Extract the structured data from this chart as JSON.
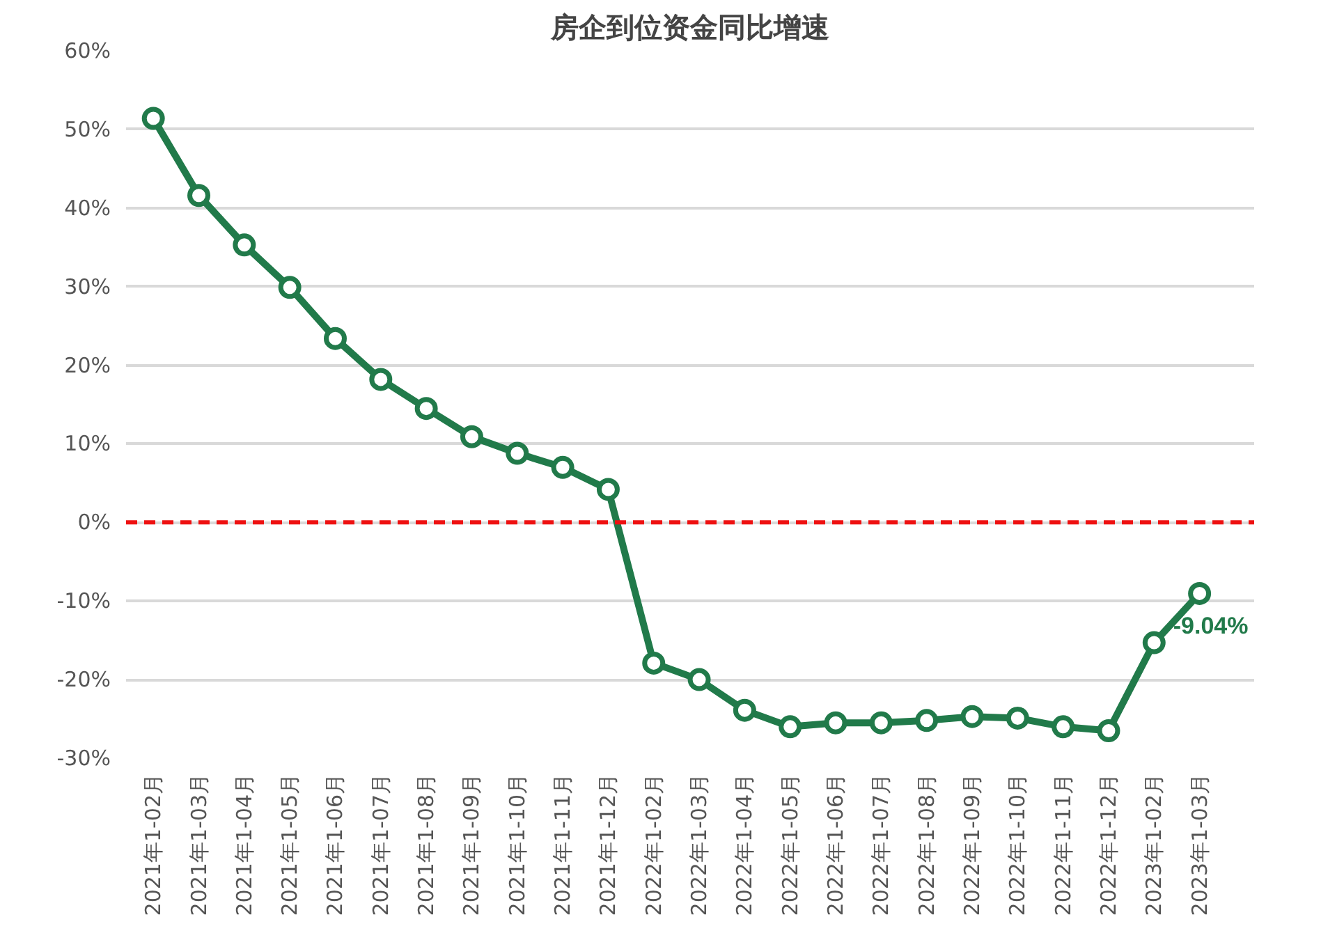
{
  "chart_data": {
    "type": "line",
    "title": "房企到位资金同比增速",
    "categories": [
      "2021年1-02月",
      "2021年1-03月",
      "2021年1-04月",
      "2021年1-05月",
      "2021年1-06月",
      "2021年1-07月",
      "2021年1-08月",
      "2021年1-09月",
      "2021年1-10月",
      "2021年1-11月",
      "2021年1-12月",
      "2022年1-02月",
      "2022年1-03月",
      "2022年1-04月",
      "2022年1-05月",
      "2022年1-06月",
      "2022年1-07月",
      "2022年1-08月",
      "2022年1-09月",
      "2022年1-10月",
      "2022年1-11月",
      "2022年1-12月",
      "2023年1-02月",
      "2023年1-03月"
    ],
    "series": [
      {
        "color": "#217a4a",
        "values": [
          51.4,
          41.6,
          35.3,
          29.9,
          23.4,
          18.2,
          14.5,
          10.9,
          8.8,
          7.0,
          4.2,
          -17.9,
          -20.0,
          -23.9,
          -26.0,
          -25.5,
          -25.5,
          -25.2,
          -24.7,
          -24.9,
          -26.0,
          -26.5,
          -15.3,
          -9.04
        ],
        "value_labels": [
          null,
          null,
          null,
          null,
          null,
          null,
          null,
          null,
          null,
          null,
          null,
          null,
          null,
          null,
          null,
          null,
          null,
          null,
          null,
          null,
          null,
          null,
          null,
          "-9.04%"
        ]
      }
    ],
    "ylim": [
      -30,
      60
    ],
    "yticks": [
      {
        "value": -30,
        "label": "-30%"
      },
      {
        "value": -20,
        "label": "-20%"
      },
      {
        "value": -10,
        "label": "-10%"
      },
      {
        "value": 0,
        "label": "0%"
      },
      {
        "value": 10,
        "label": "10%"
      },
      {
        "value": 20,
        "label": "20%"
      },
      {
        "value": 30,
        "label": "30%"
      },
      {
        "value": 40,
        "label": "40%"
      },
      {
        "value": 50,
        "label": "50%"
      },
      {
        "value": 60,
        "label": "60%"
      }
    ],
    "grid": "y",
    "marker": "circle",
    "line_style": "solid",
    "ref_lines": [
      {
        "axis": "y",
        "value": 0,
        "color": "#ee1111",
        "line_style": "dashed"
      }
    ]
  }
}
